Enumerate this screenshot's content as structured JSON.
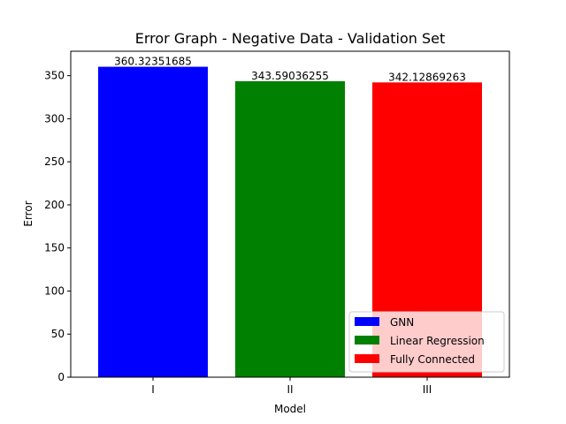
{
  "chart_data": {
    "type": "bar",
    "title": "Error Graph - Negative Data - Validation Set",
    "xlabel": "Model",
    "ylabel": "Error",
    "categories": [
      "I",
      "II",
      "III"
    ],
    "values": [
      360.32351685,
      343.59036255,
      342.12869263
    ],
    "data_labels": [
      "360.32351685",
      "343.59036255",
      "342.12869263"
    ],
    "colors": [
      "#0000ff",
      "#008000",
      "#ff0000"
    ],
    "legend": {
      "placement": "bottom-right",
      "entries": [
        "GNN",
        "Linear Regression",
        "Fully Connected"
      ]
    },
    "ylim": [
      0,
      378.34
    ],
    "yticks": [
      0,
      50,
      100,
      150,
      200,
      250,
      300,
      350
    ],
    "grid": false
  }
}
